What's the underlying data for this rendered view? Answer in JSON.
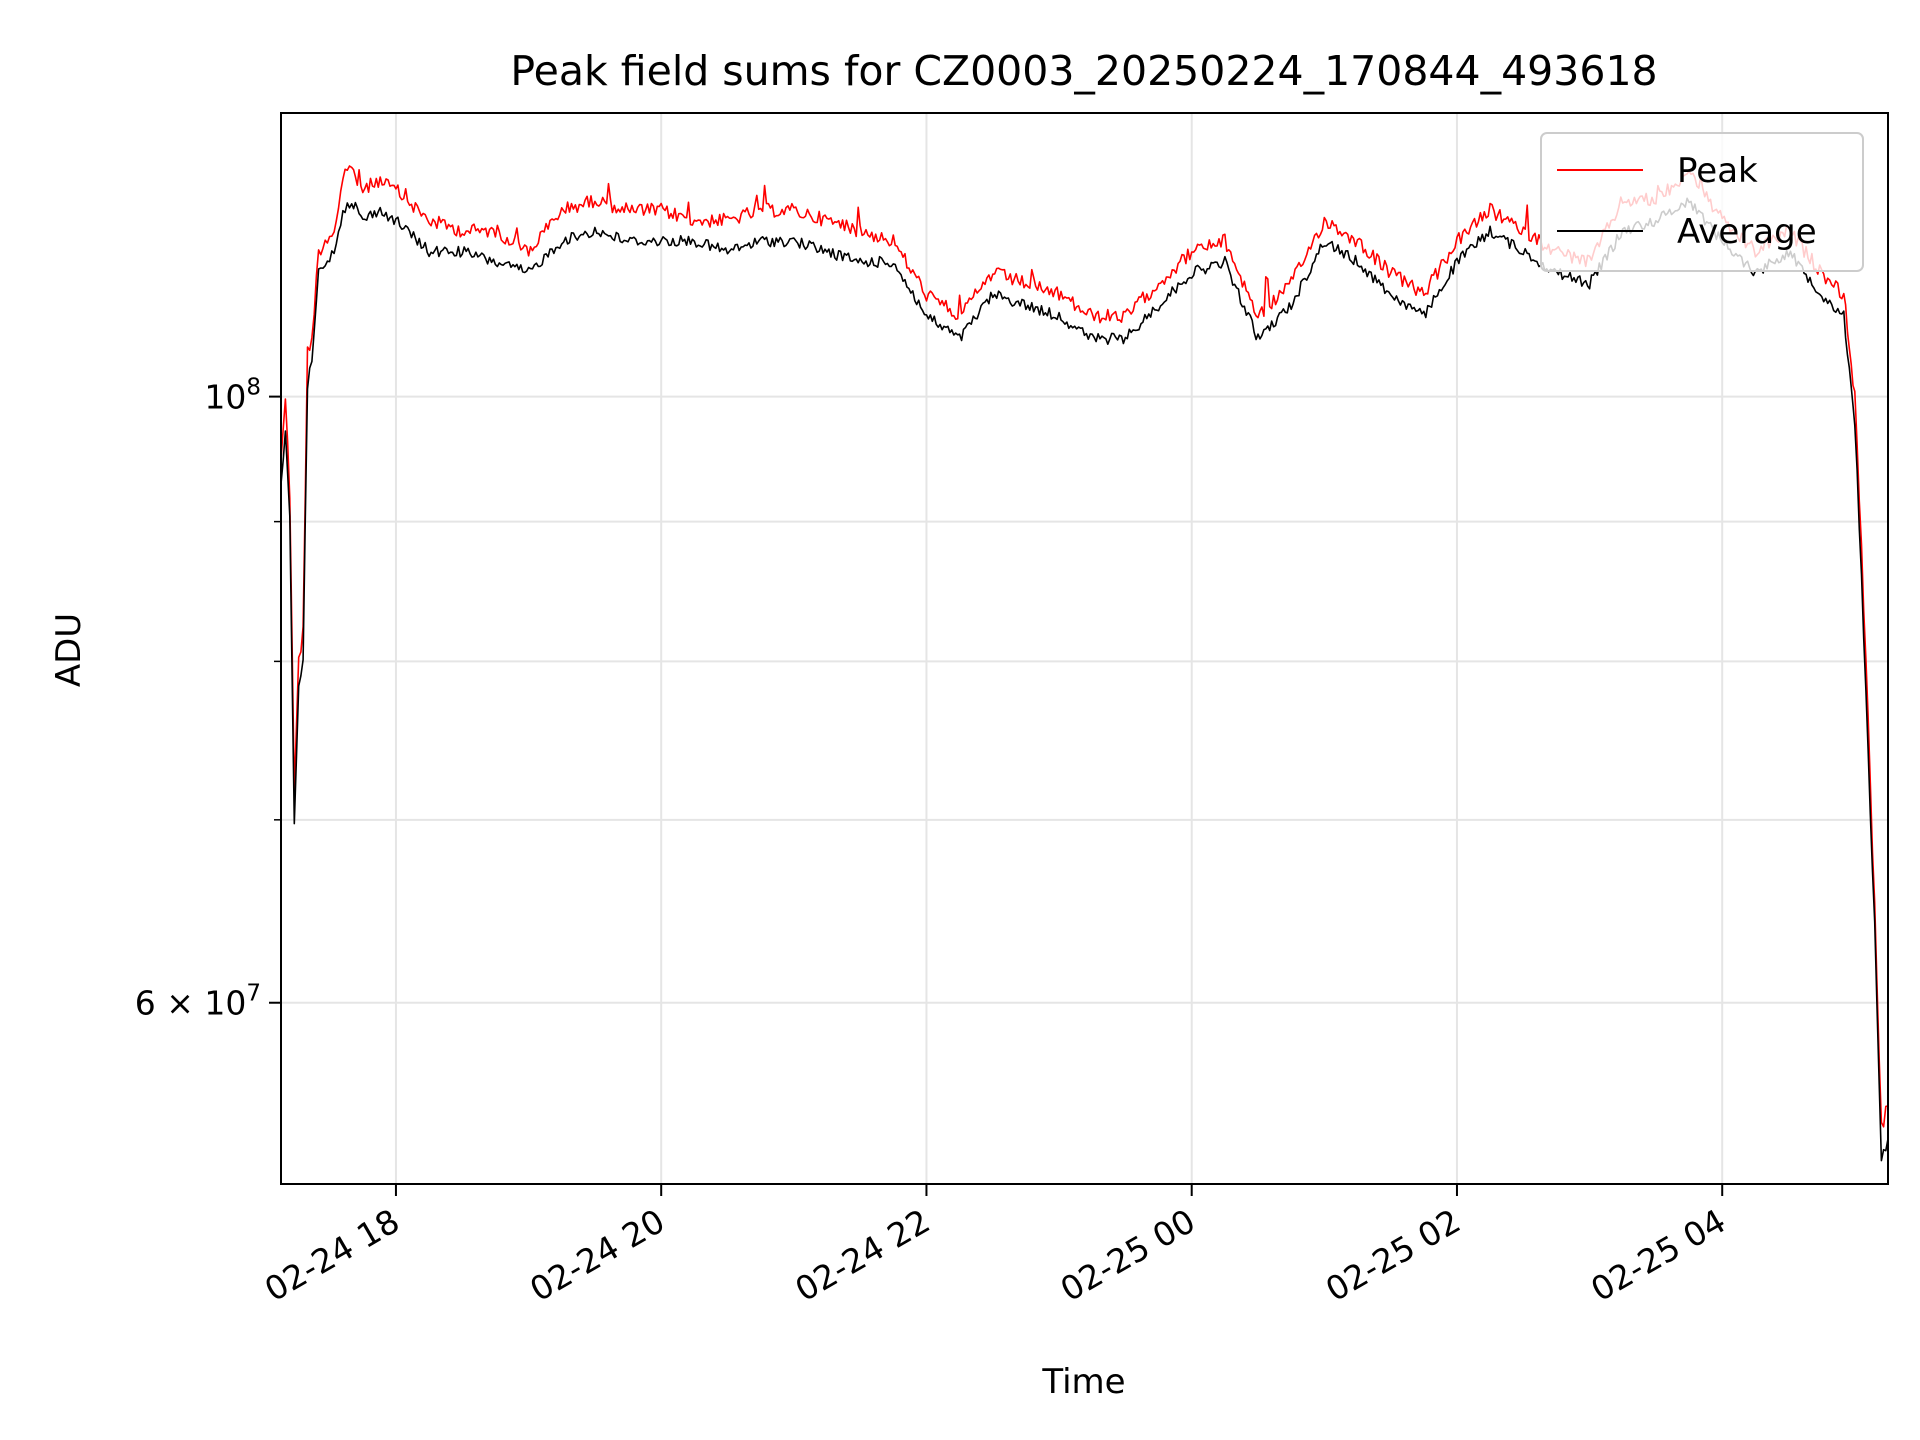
{
  "chart_data": {
    "type": "line",
    "title": "Peak field sums for CZ0003_20250224_170844_493618",
    "xlabel": "Time",
    "ylabel": "ADU",
    "x_range": [
      "2025-02-24 17:08",
      "2025-02-25 05:15"
    ],
    "y_range": [
      51500000,
      127000000
    ],
    "y_scale": "log",
    "grid": true,
    "legend": {
      "placement": "top-right",
      "entries": [
        "Peak",
        "Average"
      ]
    },
    "colors": {
      "Peak": "#ff0000",
      "Average": "#000000"
    },
    "x_ticks": [
      {
        "value": "2025-02-24 18:00",
        "label": "02-24 18"
      },
      {
        "value": "2025-02-24 20:00",
        "label": "02-24 20"
      },
      {
        "value": "2025-02-24 22:00",
        "label": "02-24 22"
      },
      {
        "value": "2025-02-25 00:00",
        "label": "02-25 00"
      },
      {
        "value": "2025-02-25 02:00",
        "label": "02-25 02"
      },
      {
        "value": "2025-02-25 04:00",
        "label": "02-25 04"
      }
    ],
    "y_ticks_major": [
      {
        "value": 100000000,
        "label_base": "10",
        "label_exp": "8"
      },
      {
        "value": 60000000,
        "label_base": "6 × 10",
        "label_exp": "7"
      }
    ],
    "y_ticks_minor": [
      70000000,
      80000000,
      90000000
    ],
    "x": [
      "2025-02-24 17:08",
      "2025-02-24 17:10",
      "2025-02-24 17:12",
      "2025-02-24 17:14",
      "2025-02-24 17:16",
      "2025-02-24 17:18",
      "2025-02-24 17:20",
      "2025-02-24 17:22",
      "2025-02-24 17:25",
      "2025-02-24 17:28",
      "2025-02-24 17:32",
      "2025-02-24 17:36",
      "2025-02-24 17:40",
      "2025-02-24 17:45",
      "2025-02-24 17:52",
      "2025-02-24 18:00",
      "2025-02-24 18:15",
      "2025-02-24 18:30",
      "2025-02-24 18:45",
      "2025-02-24 19:00",
      "2025-02-24 19:15",
      "2025-02-24 19:30",
      "2025-02-24 19:45",
      "2025-02-24 20:00",
      "2025-02-24 20:15",
      "2025-02-24 20:30",
      "2025-02-24 20:45",
      "2025-02-24 21:00",
      "2025-02-24 21:15",
      "2025-02-24 21:30",
      "2025-02-24 21:45",
      "2025-02-24 22:00",
      "2025-02-24 22:15",
      "2025-02-24 22:30",
      "2025-02-24 22:45",
      "2025-02-24 23:00",
      "2025-02-24 23:15",
      "2025-02-24 23:30",
      "2025-02-24 23:45",
      "2025-02-25 00:00",
      "2025-02-25 00:15",
      "2025-02-25 00:30",
      "2025-02-25 00:45",
      "2025-02-25 01:00",
      "2025-02-25 01:15",
      "2025-02-25 01:30",
      "2025-02-25 01:45",
      "2025-02-25 02:00",
      "2025-02-25 02:15",
      "2025-02-25 02:30",
      "2025-02-25 02:45",
      "2025-02-25 03:00",
      "2025-02-25 03:15",
      "2025-02-25 03:30",
      "2025-02-25 03:45",
      "2025-02-25 04:00",
      "2025-02-25 04:15",
      "2025-02-25 04:30",
      "2025-02-25 04:45",
      "2025-02-25 04:55",
      "2025-02-25 05:00",
      "2025-02-25 05:03",
      "2025-02-25 05:06",
      "2025-02-25 05:09",
      "2025-02-25 05:12",
      "2025-02-25 05:15"
    ],
    "series": [
      {
        "name": "Peak",
        "values": [
          95000000,
          100000000,
          92000000,
          72000000,
          80000000,
          82000000,
          104000000,
          105000000,
          113000000,
          114000000,
          115000000,
          120000000,
          121000000,
          119000000,
          120000000,
          119000000,
          116000000,
          115000000,
          115000000,
          113000000,
          117000000,
          118000000,
          117000000,
          117000000,
          116000000,
          116000000,
          117000000,
          117000000,
          116000000,
          115000000,
          114000000,
          109000000,
          107000000,
          111000000,
          110000000,
          109000000,
          107000000,
          107000000,
          110000000,
          113000000,
          114000000,
          107000000,
          110000000,
          116000000,
          114000000,
          111000000,
          109000000,
          114000000,
          117000000,
          115000000,
          113000000,
          112000000,
          118000000,
          118000000,
          121000000,
          116000000,
          113000000,
          115000000,
          111000000,
          109000000,
          100000000,
          88000000,
          76000000,
          65000000,
          54000000,
          55000000
        ]
      },
      {
        "name": "Average",
        "values": [
          93000000,
          97000000,
          90000000,
          70000000,
          78000000,
          80000000,
          101000000,
          103000000,
          111000000,
          112000000,
          113000000,
          117000000,
          118000000,
          116000000,
          117000000,
          116000000,
          113000000,
          113000000,
          112000000,
          111000000,
          114000000,
          115000000,
          114000000,
          114000000,
          114000000,
          113000000,
          114000000,
          114000000,
          113000000,
          112000000,
          112000000,
          107000000,
          105000000,
          109000000,
          108000000,
          107000000,
          105000000,
          105000000,
          108000000,
          111000000,
          112000000,
          105000000,
          108000000,
          114000000,
          112000000,
          109000000,
          107000000,
          112000000,
          115000000,
          113000000,
          111000000,
          110000000,
          115000000,
          116000000,
          118000000,
          114000000,
          111000000,
          113000000,
          109000000,
          107000000,
          98000000,
          86000000,
          74000000,
          64000000,
          52500000,
          53500000
        ]
      }
    ]
  }
}
